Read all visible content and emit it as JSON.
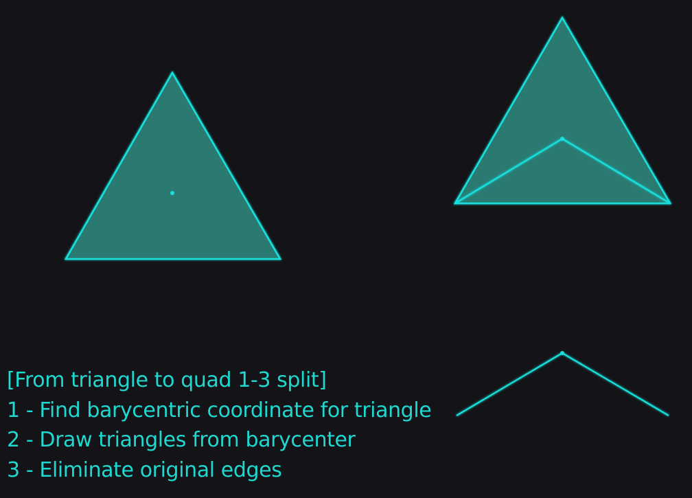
{
  "colors": {
    "background": "#141317",
    "stroke": "#19e0dc",
    "fill": "#2a7a72",
    "text": "#1fd8d0"
  },
  "diagram": {
    "original_triangle": {
      "fill": true,
      "marks_barycenter": true
    },
    "split_triangle": {
      "fill": true,
      "draws_spokes": true,
      "outlines_edges": true
    },
    "result_spokes": {
      "fill": false,
      "draws_spokes": true,
      "outlines_edges": false
    }
  },
  "caption": {
    "title": "[From triangle to quad 1-3 split]",
    "steps": [
      "1 - Find barycentric coordinate for triangle",
      "2 - Draw triangles from barycenter",
      "3 - Eliminate original edges"
    ]
  }
}
